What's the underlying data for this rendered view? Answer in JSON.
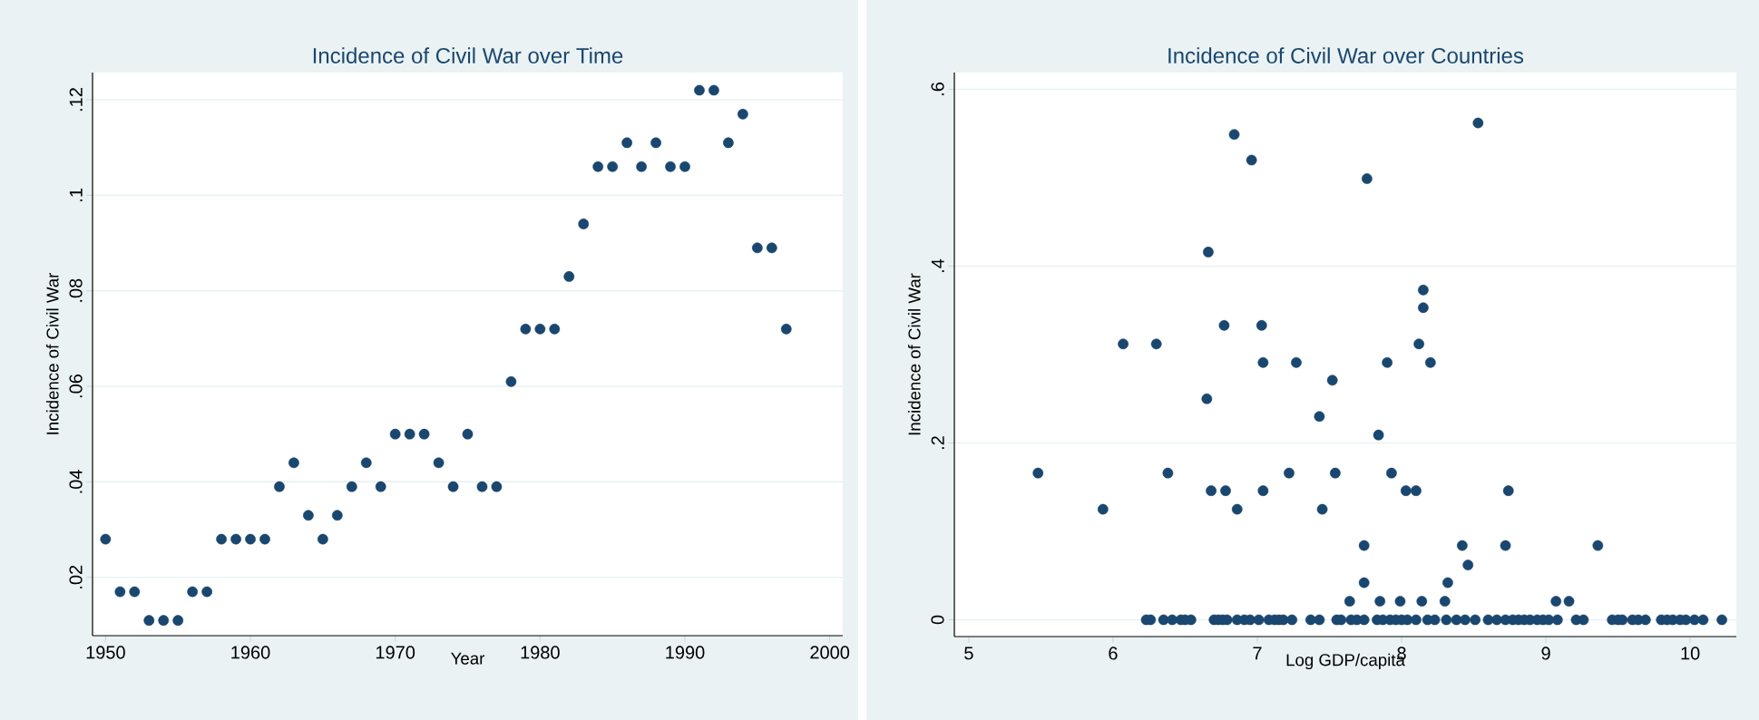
{
  "chart_data": [
    {
      "type": "scatter",
      "title": "Incidence of Civil War over Time",
      "xlabel": "Year",
      "ylabel": "Incidence of Civil War",
      "series": [
        {
          "color": "#1a476f",
          "x": [
            1950,
            1951,
            1952,
            1953,
            1954,
            1955,
            1956,
            1957,
            1958,
            1959,
            1960,
            1961,
            1962,
            1963,
            1964,
            1965,
            1966,
            1967,
            1968,
            1969,
            1970,
            1971,
            1972,
            1973,
            1974,
            1975,
            1976,
            1977,
            1978,
            1979,
            1980,
            1981,
            1982,
            1983,
            1984,
            1985,
            1986,
            1987,
            1988,
            1989,
            1990,
            1991,
            1992,
            1993,
            1994,
            1995,
            1996,
            1997
          ],
          "values": [
            0.028,
            0.017,
            0.017,
            0.011,
            0.011,
            0.011,
            0.017,
            0.017,
            0.028,
            0.028,
            0.028,
            0.028,
            0.039,
            0.044,
            0.033,
            0.028,
            0.033,
            0.039,
            0.044,
            0.039,
            0.05,
            0.05,
            0.05,
            0.044,
            0.039,
            0.05,
            0.039,
            0.039,
            0.061,
            0.072,
            0.072,
            0.072,
            0.083,
            0.094,
            0.106,
            0.106,
            0.111,
            0.106,
            0.111,
            0.106,
            0.106,
            0.122,
            0.122,
            0.111,
            0.117,
            0.089,
            0.089,
            0.072
          ]
        }
      ],
      "xlim": [
        1949.1,
        2000.9
      ],
      "ylim": [
        0.0078,
        0.1257
      ],
      "xticks": [
        1950,
        1960,
        1970,
        1980,
        1990,
        2000
      ],
      "yticks": [
        {
          "value": 0.02,
          "label": ".02"
        },
        {
          "value": 0.04,
          "label": ".04"
        },
        {
          "value": 0.06,
          "label": ".06"
        },
        {
          "value": 0.08,
          "label": ".08"
        },
        {
          "value": 0.1,
          "label": ".1"
        },
        {
          "value": 0.12,
          "label": ".12"
        }
      ],
      "grid": "y",
      "marker": "circle"
    },
    {
      "type": "scatter",
      "title": "Incidence of Civil War over Countries",
      "xlabel": "Log GDP/capita",
      "ylabel": "Incidence of Civil War",
      "series": [
        {
          "color": "#1a476f",
          "x": [
            5.48,
            5.93,
            6.07,
            6.3,
            6.38,
            6.66,
            6.65,
            6.68,
            6.77,
            6.78,
            6.84,
            6.86,
            6.96,
            7.03,
            7.04,
            7.04,
            7.27,
            7.22,
            7.43,
            7.45,
            7.52,
            7.54,
            7.76,
            8.53,
            8.15,
            8.15,
            8.12,
            7.9,
            8.2,
            7.84,
            7.93,
            8.03,
            8.1,
            8.74,
            7.74,
            8.42,
            8.72,
            9.36,
            8.46,
            7.74,
            8.32,
            7.64,
            7.85,
            7.99,
            8.14,
            8.3,
            9.07,
            9.16,
            6.23,
            6.26,
            6.35,
            6.41,
            6.47,
            6.5,
            6.54,
            6.7,
            6.73,
            6.76,
            6.79,
            6.86,
            6.91,
            6.95,
            7.01,
            7.08,
            7.12,
            7.15,
            7.18,
            7.24,
            7.37,
            7.43,
            7.55,
            7.58,
            7.65,
            7.69,
            7.74,
            7.83,
            7.87,
            7.92,
            7.96,
            8.0,
            8.04,
            8.1,
            8.18,
            8.23,
            8.31,
            8.38,
            8.44,
            8.51,
            8.6,
            8.66,
            8.72,
            8.77,
            8.81,
            8.85,
            8.89,
            8.94,
            8.98,
            9.02,
            9.08,
            9.21,
            9.26,
            9.46,
            9.5,
            9.53,
            9.6,
            9.64,
            9.69,
            9.8,
            9.84,
            9.88,
            9.93,
            9.97,
            10.03,
            10.09,
            10.22
          ],
          "values": [
            0.166,
            0.125,
            0.312,
            0.312,
            0.166,
            0.416,
            0.25,
            0.146,
            0.333,
            0.146,
            0.549,
            0.125,
            0.52,
            0.333,
            0.291,
            0.146,
            0.291,
            0.166,
            0.23,
            0.125,
            0.271,
            0.166,
            0.499,
            0.562,
            0.373,
            0.353,
            0.312,
            0.291,
            0.291,
            0.209,
            0.166,
            0.146,
            0.146,
            0.146,
            0.084,
            0.084,
            0.084,
            0.084,
            0.062,
            0.042,
            0.042,
            0.021,
            0.021,
            0.021,
            0.021,
            0.021,
            0.021,
            0.021,
            0,
            0,
            0,
            0,
            0,
            0,
            0,
            0,
            0,
            0,
            0,
            0,
            0,
            0,
            0,
            0,
            0,
            0,
            0,
            0,
            0,
            0,
            0,
            0,
            0,
            0,
            0,
            0,
            0,
            0,
            0,
            0,
            0,
            0,
            0,
            0,
            0,
            0,
            0,
            0,
            0,
            0,
            0,
            0,
            0,
            0,
            0,
            0,
            0,
            0,
            0,
            0,
            0,
            0,
            0,
            0,
            0,
            0,
            0,
            0,
            0,
            0,
            0,
            0,
            0,
            0,
            0
          ]
        }
      ],
      "xlim": [
        4.9,
        10.32
      ],
      "ylim": [
        -0.019,
        0.619
      ],
      "xticks": [
        5,
        6,
        7,
        8,
        9,
        10
      ],
      "yticks": [
        0,
        {
          "value": 0.2,
          "label": ".2"
        },
        {
          "value": 0.4,
          "label": ".4"
        },
        {
          "value": 0.6,
          "label": ".6"
        }
      ],
      "grid": "y",
      "marker": "circle"
    }
  ]
}
